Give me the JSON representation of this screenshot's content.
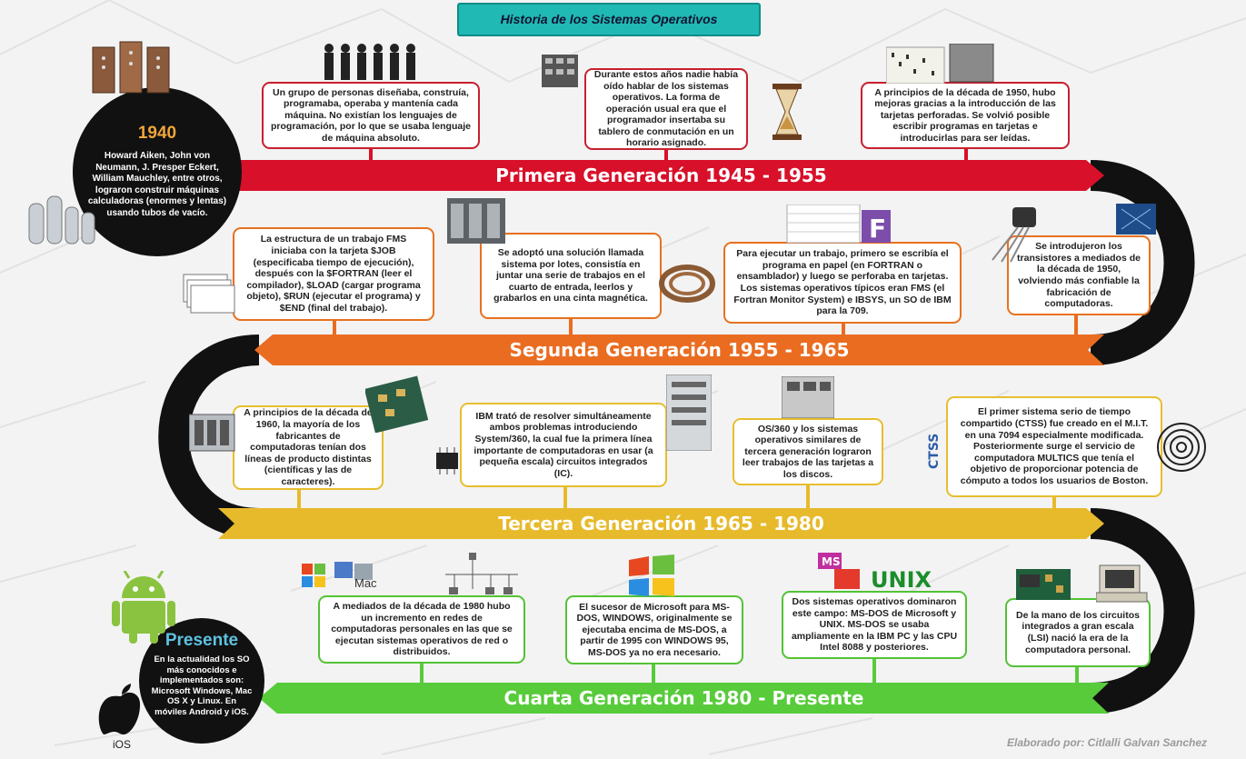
{
  "title": "Historia de los Sistemas Operativos",
  "generations": [
    {
      "label": "Primera Generación 1945 - 1955",
      "color": "#d8102a"
    },
    {
      "label": "Segunda Generación 1955 - 1965",
      "color": "#ea6c20"
    },
    {
      "label": "Tercera Generación 1965 - 1980",
      "color": "#e7ba2c"
    },
    {
      "label": "Cuarta Generación 1980 - Presente",
      "color": "#58cb3b"
    }
  ],
  "intro": {
    "year": "1940",
    "text": "Howard Aiken, John von Neumann, J. Presper Eckert, William Mauchley, entre otros, lograron construir máquinas calculadoras (enormes y lentas) usando tubos de vacío."
  },
  "present": {
    "title": "Presente",
    "text": "En la actualidad los SO más conocidos e implementados son: Microsoft Windows, Mac OS X y Linux. En móviles Android y iOS."
  },
  "gen1": [
    "Un grupo de personas diseñaba, construía, programaba, operaba y mantenía cada máquina. No existían los lenguajes de programación, por lo que se usaba lenguaje de máquina absoluto.",
    "Durante estos años nadie había oído hablar de los sistemas operativos. La forma de operación usual era que el programador insertaba su tablero de conmutación en un horario asignado.",
    "A principios de la década de 1950, hubo mejoras gracias a la introducción de las tarjetas perforadas. Se volvió posible escribir programas en tarjetas e introducirlas para ser leídas."
  ],
  "gen2": [
    "La estructura de un trabajo FMS iniciaba con la tarjeta $JOB (especificaba tiempo de ejecución), después con la $FORTRAN (leer el compilador), $LOAD (cargar programa objeto), $RUN (ejecutar el programa) y $END (final del trabajo).",
    "Se adoptó una solución llamada sistema por lotes, consistía en juntar una serie de trabajos en el cuarto de entrada, leerlos y grabarlos en una cinta magnética.",
    "Para ejecutar un trabajo, primero se escribía el programa en papel (en FORTRAN o ensamblador) y luego se perforaba en tarjetas. Los sistemas operativos típicos eran FMS (el Fortran Monitor System) e IBSYS, un SO de IBM para la 709.",
    "Se introdujeron los transistores a mediados de la década de 1950, volviendo más confiable la fabricación de computadoras."
  ],
  "gen3": [
    "A principios de la década de 1960, la mayoría de los fabricantes de computadoras tenían dos líneas de producto distintas (científicas y las de caracteres).",
    "IBM trató de resolver simultáneamente ambos problemas introduciendo System/360, la cual fue la primera línea importante de computadoras en usar (a pequeña escala) circuitos integrados (IC).",
    "OS/360 y los sistemas operativos similares de tercera generación lograron leer trabajos de las tarjetas a los discos.",
    "El primer sistema serio de tiempo compartido (CTSS) fue creado en el M.I.T. en una 7094 especialmente modificada. Posteriormente surge el servicio de computadora MULTICS que tenía el objetivo de proporcionar potencia de cómputo a todos los usuarios de Boston."
  ],
  "gen4": [
    "A mediados de la década de 1980 hubo un incremento en redes de computadoras personales en las que se ejecutan sistemas operativos de red o distribuidos.",
    "El sucesor de Microsoft para MS-DOS, WINDOWS, originalmente se ejecutaba encima de MS-DOS, a partir de 1995 con WINDOWS 95, MS-DOS ya no era necesario.",
    "Dos sistemas operativos dominaron este campo: MS-DOS de Microsoft y UNIX. MS-DOS se usaba ampliamente en la IBM PC y las CPU Intel 8088 y posteriores.",
    "De la mano de los circuitos integrados a gran escala (LSI) nació la era de la computadora personal."
  ],
  "logos": {
    "unix": "UNIX",
    "ctss": "CTSS",
    "mac": "Mac",
    "ios": "iOS"
  },
  "footer": "Elaborado por: Citlalli Galvan Sanchez",
  "icons": [
    "vacuum-tube-icon",
    "computer-icon",
    "hourglass-icon",
    "punch-card-icon",
    "tape-reel-icon",
    "transistor-icon",
    "android-icon",
    "apple-icon",
    "windows-icon",
    "chip-icon"
  ]
}
